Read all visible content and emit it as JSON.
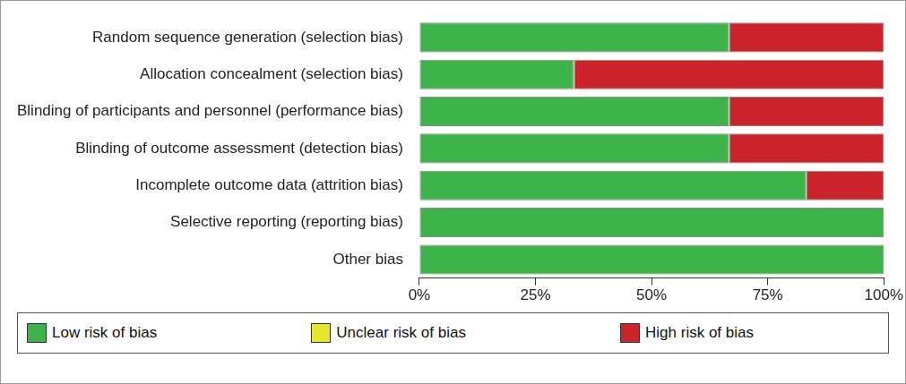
{
  "chart_data": {
    "type": "bar",
    "orientation": "horizontal",
    "stacked": true,
    "categories": [
      "Random sequence generation (selection bias)",
      "Allocation concealment (selection bias)",
      "Blinding of participants and personnel (performance bias)",
      "Blinding of outcome assessment (detection bias)",
      "Incomplete outcome data (attrition bias)",
      "Selective reporting (reporting bias)",
      "Other bias"
    ],
    "series": [
      {
        "name": "Low risk of bias",
        "color": "#3cb44a",
        "values": [
          66.7,
          33.3,
          66.7,
          66.7,
          83.3,
          100,
          100
        ]
      },
      {
        "name": "Unclear risk of bias",
        "color": "#e8e62c",
        "values": [
          0,
          0,
          0,
          0,
          0,
          0,
          0
        ]
      },
      {
        "name": "High risk of bias",
        "color": "#cc2229",
        "values": [
          33.3,
          66.7,
          33.3,
          33.3,
          16.7,
          0,
          0
        ]
      }
    ],
    "xlim": [
      0,
      100
    ],
    "xticks": [
      {
        "value": 0,
        "label": "0%"
      },
      {
        "value": 25,
        "label": "25%"
      },
      {
        "value": 50,
        "label": "50%"
      },
      {
        "value": 75,
        "label": "75%"
      },
      {
        "value": 100,
        "label": "100%"
      }
    ],
    "grid": false,
    "legend": "bottom"
  }
}
